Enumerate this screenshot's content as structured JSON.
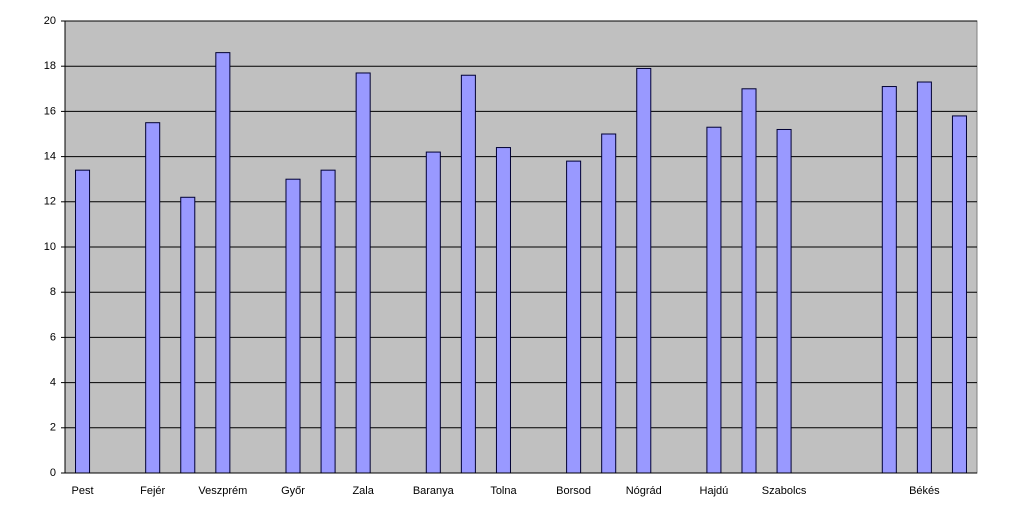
{
  "chart_data": {
    "type": "bar",
    "categories": [
      "Pest",
      null,
      "Fejér",
      null,
      "Veszprém",
      null,
      "Győr",
      null,
      "Zala",
      null,
      "Baranya",
      null,
      "Tolna",
      null,
      "Borsod",
      null,
      "Nógrád",
      null,
      "Hajdú",
      null,
      "Szabolcs",
      null,
      null,
      null,
      "Békés",
      null
    ],
    "values": [
      13.4,
      null,
      15.5,
      12.2,
      18.6,
      null,
      13.0,
      13.4,
      17.7,
      null,
      14.2,
      17.6,
      14.4,
      null,
      13.8,
      15.0,
      17.9,
      null,
      15.3,
      17.0,
      15.2,
      null,
      null,
      17.1,
      17.3,
      15.8
    ],
    "color": "#9999ff",
    "ylim": [
      0,
      20
    ],
    "yticks": [
      0,
      2,
      4,
      6,
      8,
      10,
      12,
      14,
      16,
      18,
      20
    ],
    "grid": true
  }
}
